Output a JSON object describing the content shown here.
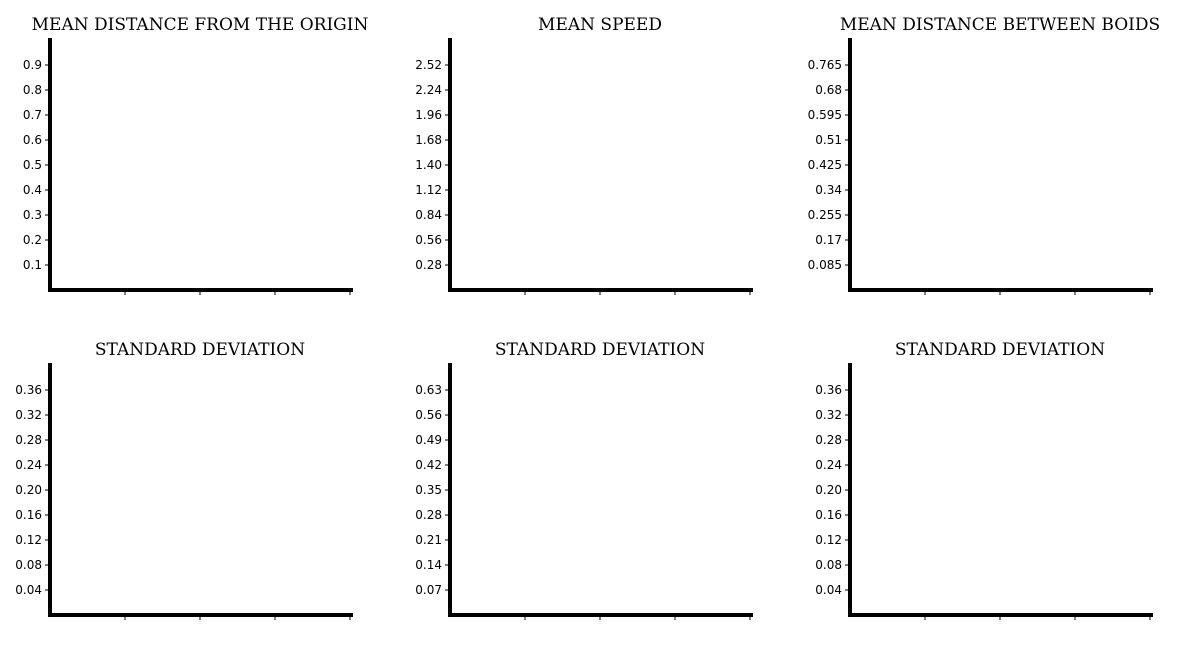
{
  "chart_data": [
    {
      "type": "line",
      "title": "MEAN DISTANCE FROM THE ORIGIN",
      "xlabel": "",
      "ylabel": "",
      "y_ticks": [
        "0.1",
        "0.2",
        "0.3",
        "0.4",
        "0.5",
        "0.6",
        "0.7",
        "0.8",
        "0.9"
      ],
      "ylim": [
        0,
        1.0
      ],
      "x_tick_count": 4,
      "series": []
    },
    {
      "type": "line",
      "title": "MEAN SPEED",
      "xlabel": "",
      "ylabel": "",
      "y_ticks": [
        "0.28",
        "0.56",
        "0.84",
        "1.12",
        "1.40",
        "1.68",
        "1.96",
        "2.24",
        "2.52"
      ],
      "ylim": [
        0,
        2.8
      ],
      "x_tick_count": 4,
      "series": []
    },
    {
      "type": "line",
      "title": "MEAN DISTANCE BETWEEN BOIDS",
      "xlabel": "",
      "ylabel": "",
      "y_ticks": [
        "0.085",
        "0.17",
        "0.255",
        "0.34",
        "0.425",
        "0.51",
        "0.595",
        "0.68",
        "0.765"
      ],
      "ylim": [
        0,
        0.85
      ],
      "x_tick_count": 4,
      "series": []
    },
    {
      "type": "line",
      "title": "STANDARD DEVIATION",
      "xlabel": "",
      "ylabel": "",
      "y_ticks": [
        "0.04",
        "0.08",
        "0.12",
        "0.16",
        "0.20",
        "0.24",
        "0.28",
        "0.32",
        "0.36"
      ],
      "ylim": [
        0,
        0.4
      ],
      "x_tick_count": 4,
      "series": []
    },
    {
      "type": "line",
      "title": "STANDARD DEVIATION",
      "xlabel": "",
      "ylabel": "",
      "y_ticks": [
        "0.07",
        "0.14",
        "0.21",
        "0.28",
        "0.35",
        "0.42",
        "0.49",
        "0.56",
        "0.63"
      ],
      "ylim": [
        0,
        0.7
      ],
      "x_tick_count": 4,
      "series": []
    },
    {
      "type": "line",
      "title": "STANDARD DEVIATION",
      "xlabel": "",
      "ylabel": "",
      "y_ticks": [
        "0.04",
        "0.08",
        "0.12",
        "0.16",
        "0.20",
        "0.24",
        "0.28",
        "0.32",
        "0.36"
      ],
      "ylim": [
        0,
        0.4
      ],
      "x_tick_count": 4,
      "series": []
    }
  ],
  "colors": {
    "axis": "#000000",
    "background": "#ffffff"
  }
}
